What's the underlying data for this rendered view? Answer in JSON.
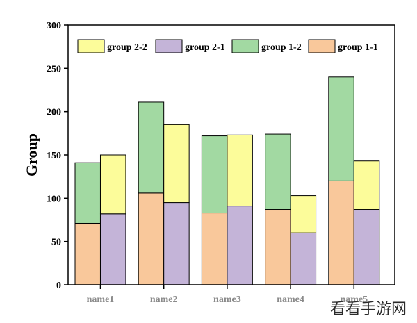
{
  "chart_data": {
    "type": "bar",
    "layout": "grouped-stacked",
    "categories": [
      "name1",
      "name2",
      "name3",
      "name4",
      "name5"
    ],
    "ylabel": "Group",
    "xlabel": "",
    "ylim": [
      0,
      300
    ],
    "yticks": [
      0,
      50,
      100,
      150,
      200,
      250,
      300
    ],
    "grid": false,
    "legend_position": "top",
    "series": [
      {
        "name": "group 1-1",
        "stack": "left",
        "color": "#F9C89B",
        "values": [
          71,
          106,
          83,
          87,
          120
        ]
      },
      {
        "name": "group 1-2",
        "stack": "left",
        "color": "#A2D9A2",
        "values": [
          70,
          105,
          89,
          87,
          120
        ]
      },
      {
        "name": "group 2-1",
        "stack": "right",
        "color": "#C4B4D8",
        "values": [
          82,
          95,
          91,
          60,
          87
        ]
      },
      {
        "name": "group 2-2",
        "stack": "right",
        "color": "#FCFC9A",
        "values": [
          68,
          90,
          82,
          43,
          56
        ]
      }
    ],
    "legend_order": [
      "group 2-2",
      "group 2-1",
      "group 1-2",
      "group 1-1"
    ]
  },
  "watermark": "看看手游网"
}
